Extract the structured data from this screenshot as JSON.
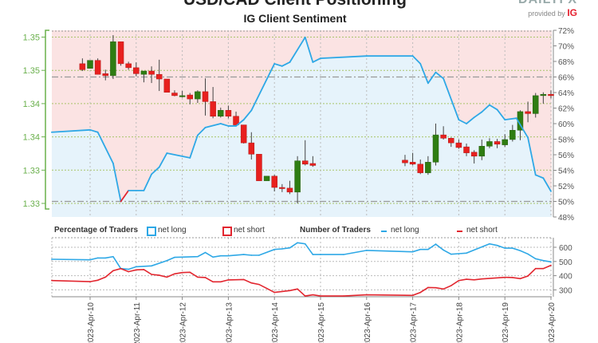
{
  "header": {
    "title": "USD/CAD Client Positioning",
    "subtitle": "IG Client Sentiment",
    "logo_text": "DAILYFX",
    "provided_by": "provided by",
    "provider": "IG"
  },
  "legend": {
    "percentage_title": "Percentage of Traders",
    "pct_long": "net long",
    "pct_short": "net short",
    "number_title": "Number of Traders",
    "num_long": "net long",
    "num_short": "net short"
  },
  "colors": {
    "net_long": "#2ea8e6",
    "net_short": "#e2262f",
    "long_fill": "#e6f3fb",
    "short_fill": "#fbe3e3",
    "candle_up": "#2e7d12",
    "candle_down": "#e8201e",
    "price_axis": "#6ab04c"
  },
  "chart_data": [
    {
      "type": "candlestick+area",
      "title": "IG Client Sentiment",
      "price_axis": {
        "side": "left",
        "ticks": [
          1.35,
          1.345,
          1.34,
          1.335,
          1.33,
          1.325
        ],
        "tick_labels": [
          "1.35",
          "1.35",
          "1.34",
          "1.34",
          "1.33",
          "1.33"
        ]
      },
      "pct_axis": {
        "side": "right",
        "ylim": [
          48,
          72
        ],
        "ticks": [
          72,
          70,
          68,
          66,
          64,
          62,
          60,
          58,
          56,
          54,
          52,
          50,
          48
        ],
        "tick_labels": [
          "72%",
          "70%",
          "68%",
          "66%",
          "64%",
          "62%",
          "60%",
          "58%",
          "56%",
          "54%",
          "52%",
          "50%",
          "48%"
        ]
      },
      "reference_lines_pct": [
        66,
        50
      ],
      "x_range": [
        "2023-04-09T04:00",
        "2023-04-20T00:00"
      ],
      "grid": true,
      "candles_ohlc": [
        [
          "2023-04-09T20:00",
          1.346,
          1.3468,
          1.3449,
          1.3451
        ],
        [
          "2023-04-10T00:00",
          1.3453,
          1.3465,
          1.3453,
          1.3465
        ],
        [
          "2023-04-10T04:00",
          1.3465,
          1.3468,
          1.3444,
          1.3444
        ],
        [
          "2023-04-10T08:00",
          1.3445,
          1.3451,
          1.3435,
          1.3442
        ],
        [
          "2023-04-10T12:00",
          1.3442,
          1.3503,
          1.3437,
          1.3493
        ],
        [
          "2023-04-10T16:00",
          1.3493,
          1.3493,
          1.3457,
          1.346
        ],
        [
          "2023-04-10T20:00",
          1.346,
          1.3463,
          1.3451,
          1.3454
        ],
        [
          "2023-04-11T00:00",
          1.3454,
          1.3462,
          1.3441,
          1.3445
        ],
        [
          "2023-04-11T04:00",
          1.3444,
          1.3449,
          1.3432,
          1.3449
        ],
        [
          "2023-04-11T08:00",
          1.3449,
          1.3456,
          1.3431,
          1.3444
        ],
        [
          "2023-04-11T12:00",
          1.3444,
          1.3466,
          1.3419,
          1.3437
        ],
        [
          "2023-04-11T16:00",
          1.3437,
          1.3437,
          1.3417,
          1.3417
        ],
        [
          "2023-04-11T20:00",
          1.3416,
          1.342,
          1.3411,
          1.3412
        ],
        [
          "2023-04-12T00:00",
          1.3412,
          1.3419,
          1.3409,
          1.3412
        ],
        [
          "2023-04-12T04:00",
          1.3413,
          1.3416,
          1.3399,
          1.3407
        ],
        [
          "2023-04-12T08:00",
          1.3407,
          1.342,
          1.3401,
          1.3418
        ],
        [
          "2023-04-12T12:00",
          1.3418,
          1.3438,
          1.3382,
          1.3403
        ],
        [
          "2023-04-12T16:00",
          1.3403,
          1.3425,
          1.3378,
          1.3381
        ],
        [
          "2023-04-12T20:00",
          1.3381,
          1.3394,
          1.3379,
          1.339
        ],
        [
          "2023-04-13T00:00",
          1.339,
          1.3397,
          1.3378,
          1.3381
        ],
        [
          "2023-04-13T04:00",
          1.3381,
          1.3388,
          1.3368,
          1.3368
        ],
        [
          "2023-04-13T08:00",
          1.3368,
          1.3368,
          1.334,
          1.3341
        ],
        [
          "2023-04-13T12:00",
          1.3341,
          1.3357,
          1.3316,
          1.3324
        ],
        [
          "2023-04-13T16:00",
          1.3324,
          1.3324,
          1.3284,
          1.3284
        ],
        [
          "2023-04-13T20:00",
          1.3284,
          1.3291,
          1.3284,
          1.3291
        ],
        [
          "2023-04-14T00:00",
          1.3291,
          1.3293,
          1.3268,
          1.3274
        ],
        [
          "2023-04-14T04:00",
          1.3274,
          1.3279,
          1.3267,
          1.3273
        ],
        [
          "2023-04-14T08:00",
          1.3273,
          1.3284,
          1.3264,
          1.3267
        ],
        [
          "2023-04-14T12:00",
          1.3267,
          1.3321,
          1.325,
          1.3314
        ],
        [
          "2023-04-14T16:00",
          1.3314,
          1.3345,
          1.3307,
          1.3309
        ],
        [
          "2023-04-14T20:00",
          1.331,
          1.3321,
          1.3305,
          1.3307
        ],
        [
          "2023-04-16T20:00",
          1.3315,
          1.3323,
          1.3306,
          1.3311
        ],
        [
          "2023-04-17T00:00",
          1.3312,
          1.3326,
          1.3307,
          1.3309
        ],
        [
          "2023-04-17T04:00",
          1.3309,
          1.3316,
          1.3294,
          1.3296
        ],
        [
          "2023-04-17T08:00",
          1.3296,
          1.3321,
          1.3293,
          1.3312
        ],
        [
          "2023-04-17T12:00",
          1.3312,
          1.337,
          1.3307,
          1.3353
        ],
        [
          "2023-04-17T16:00",
          1.3353,
          1.3366,
          1.3346,
          1.3348
        ],
        [
          "2023-04-17T20:00",
          1.3348,
          1.3349,
          1.3335,
          1.3341
        ],
        [
          "2023-04-18T00:00",
          1.3341,
          1.3346,
          1.3332,
          1.3334
        ],
        [
          "2023-04-18T04:00",
          1.3335,
          1.334,
          1.3321,
          1.3326
        ],
        [
          "2023-04-18T08:00",
          1.3327,
          1.333,
          1.331,
          1.3321
        ],
        [
          "2023-04-18T12:00",
          1.3321,
          1.3346,
          1.3315,
          1.3336
        ],
        [
          "2023-04-18T16:00",
          1.3336,
          1.3348,
          1.3333,
          1.3343
        ],
        [
          "2023-04-18T20:00",
          1.3343,
          1.3347,
          1.3333,
          1.3339
        ],
        [
          "2023-04-19T00:00",
          1.3338,
          1.3354,
          1.3335,
          1.3346
        ],
        [
          "2023-04-19T04:00",
          1.3346,
          1.3368,
          1.3343,
          1.336
        ],
        [
          "2023-04-19T08:00",
          1.336,
          1.339,
          1.3345,
          1.3388
        ],
        [
          "2023-04-19T12:00",
          1.3388,
          1.3403,
          1.3372,
          1.3385
        ],
        [
          "2023-04-19T16:00",
          1.3385,
          1.3416,
          1.3379,
          1.3412
        ],
        [
          "2023-04-19T20:00",
          1.3412,
          1.3417,
          1.34,
          1.3414
        ],
        [
          "2023-04-20T00:00",
          1.3414,
          1.342,
          1.3408,
          1.3412
        ]
      ],
      "net_long_pct": [
        [
          "2023-04-09T04:00",
          58.9
        ],
        [
          "2023-04-10T00:00",
          59.2
        ],
        [
          "2023-04-10T04:00",
          58.9
        ],
        [
          "2023-04-10T12:00",
          54.9
        ],
        [
          "2023-04-10T16:00",
          50.0
        ],
        [
          "2023-04-10T20:00",
          51.4
        ],
        [
          "2023-04-11T04:00",
          51.4
        ],
        [
          "2023-04-11T08:00",
          53.5
        ],
        [
          "2023-04-11T12:00",
          54.4
        ],
        [
          "2023-04-11T16:00",
          56.2
        ],
        [
          "2023-04-12T04:00",
          55.6
        ],
        [
          "2023-04-12T08:00",
          58.5
        ],
        [
          "2023-04-12T12:00",
          59.5
        ],
        [
          "2023-04-12T20:00",
          60.0
        ],
        [
          "2023-04-13T00:00",
          59.7
        ],
        [
          "2023-04-13T04:00",
          59.7
        ],
        [
          "2023-04-13T08:00",
          60.5
        ],
        [
          "2023-04-13T12:00",
          61.7
        ],
        [
          "2023-04-14T00:00",
          67.7
        ],
        [
          "2023-04-14T04:00",
          67.4
        ],
        [
          "2023-04-14T08:00",
          67.9
        ],
        [
          "2023-04-14T16:00",
          71.1
        ],
        [
          "2023-04-14T20:00",
          67.9
        ],
        [
          "2023-04-15T00:00",
          68.4
        ],
        [
          "2023-04-16T00:00",
          68.7
        ],
        [
          "2023-04-17T00:00",
          68.7
        ],
        [
          "2023-04-17T04:00",
          67.7
        ],
        [
          "2023-04-17T08:00",
          65.2
        ],
        [
          "2023-04-17T12:00",
          66.6
        ],
        [
          "2023-04-17T16:00",
          65.8
        ],
        [
          "2023-04-18T00:00",
          60.5
        ],
        [
          "2023-04-18T04:00",
          60.0
        ],
        [
          "2023-04-18T08:00",
          60.8
        ],
        [
          "2023-04-18T12:00",
          61.5
        ],
        [
          "2023-04-18T16:00",
          62.4
        ],
        [
          "2023-04-18T20:00",
          61.8
        ],
        [
          "2023-04-19T00:00",
          60.5
        ],
        [
          "2023-04-19T06:00",
          60.7
        ],
        [
          "2023-04-19T12:00",
          58.2
        ],
        [
          "2023-04-19T16:00",
          53.4
        ],
        [
          "2023-04-19T20:00",
          53.0
        ],
        [
          "2023-04-20T00:00",
          51.3
        ]
      ]
    },
    {
      "type": "line",
      "title": "Number of Traders",
      "y_axis": {
        "side": "right",
        "ticks": [
          600,
          500,
          400,
          300
        ],
        "tick_labels": [
          "600",
          "500",
          "400",
          "300"
        ],
        "ylim": [
          250,
          650
        ]
      },
      "x_ticks": [
        "2023-04-10",
        "2023-04-11",
        "2023-04-12",
        "2023-04-13",
        "2023-04-14",
        "2023-04-15",
        "2023-04-16",
        "2023-04-17",
        "2023-04-18",
        "2023-04-19",
        "2023-04-20"
      ],
      "x_tick_labels": [
        "2023-Apr-10",
        "2023-Apr-11",
        "2023-Apr-12",
        "2023-Apr-13",
        "2023-Apr-14",
        "2023-Apr-15",
        "2023-Apr-16",
        "2023-Apr-17",
        "2023-Apr-18",
        "2023-Apr-19",
        "2023-Apr-20"
      ],
      "grid": true,
      "series": [
        {
          "name": "net long",
          "color": "#2ea8e6",
          "points": [
            [
              "2023-04-09T04:00",
              516
            ],
            [
              "2023-04-10T00:00",
              512
            ],
            [
              "2023-04-10T04:00",
              525
            ],
            [
              "2023-04-10T08:00",
              525
            ],
            [
              "2023-04-10T12:00",
              534
            ],
            [
              "2023-04-10T16:00",
              450
            ],
            [
              "2023-04-10T20:00",
              445
            ],
            [
              "2023-04-11T00:00",
              463
            ],
            [
              "2023-04-11T08:00",
              469
            ],
            [
              "2023-04-11T16:00",
              506
            ],
            [
              "2023-04-11T20:00",
              529
            ],
            [
              "2023-04-12T00:00",
              531
            ],
            [
              "2023-04-12T08:00",
              534
            ],
            [
              "2023-04-12T12:00",
              563
            ],
            [
              "2023-04-12T16:00",
              531
            ],
            [
              "2023-04-12T20:00",
              540
            ],
            [
              "2023-04-13T00:00",
              540
            ],
            [
              "2023-04-13T08:00",
              549
            ],
            [
              "2023-04-13T12:00",
              544
            ],
            [
              "2023-04-13T16:00",
              544
            ],
            [
              "2023-04-14T00:00",
              585
            ],
            [
              "2023-04-14T04:00",
              589
            ],
            [
              "2023-04-14T08:00",
              596
            ],
            [
              "2023-04-14T12:00",
              632
            ],
            [
              "2023-04-14T16:00",
              624
            ],
            [
              "2023-04-14T20:00",
              549
            ],
            [
              "2023-04-15T00:00",
              549
            ],
            [
              "2023-04-15T12:00",
              549
            ],
            [
              "2023-04-16T00:00",
              578
            ],
            [
              "2023-04-17T00:00",
              568
            ],
            [
              "2023-04-17T04:00",
              585
            ],
            [
              "2023-04-17T08:00",
              585
            ],
            [
              "2023-04-17T12:00",
              622
            ],
            [
              "2023-04-17T16:00",
              581
            ],
            [
              "2023-04-17T20:00",
              551
            ],
            [
              "2023-04-18T00:00",
              555
            ],
            [
              "2023-04-18T04:00",
              559
            ],
            [
              "2023-04-18T08:00",
              581
            ],
            [
              "2023-04-18T16:00",
              624
            ],
            [
              "2023-04-18T20:00",
              613
            ],
            [
              "2023-04-19T00:00",
              594
            ],
            [
              "2023-04-19T04:00",
              594
            ],
            [
              "2023-04-19T08:00",
              576
            ],
            [
              "2023-04-19T12:00",
              553
            ],
            [
              "2023-04-19T16:00",
              519
            ],
            [
              "2023-04-19T20:00",
              506
            ],
            [
              "2023-04-20T00:00",
              497
            ]
          ]
        },
        {
          "name": "net short",
          "color": "#e2262f",
          "points": [
            [
              "2023-04-09T04:00",
              366
            ],
            [
              "2023-04-10T00:00",
              358
            ],
            [
              "2023-04-10T04:00",
              368
            ],
            [
              "2023-04-10T08:00",
              390
            ],
            [
              "2023-04-10T12:00",
              435
            ],
            [
              "2023-04-10T16:00",
              450
            ],
            [
              "2023-04-10T20:00",
              428
            ],
            [
              "2023-04-11T00:00",
              441
            ],
            [
              "2023-04-11T04:00",
              443
            ],
            [
              "2023-04-11T08:00",
              409
            ],
            [
              "2023-04-11T12:00",
              403
            ],
            [
              "2023-04-11T16:00",
              390
            ],
            [
              "2023-04-11T20:00",
              413
            ],
            [
              "2023-04-12T00:00",
              422
            ],
            [
              "2023-04-12T04:00",
              424
            ],
            [
              "2023-04-12T08:00",
              390
            ],
            [
              "2023-04-12T12:00",
              387
            ],
            [
              "2023-04-12T16:00",
              357
            ],
            [
              "2023-04-12T20:00",
              357
            ],
            [
              "2023-04-13T00:00",
              370
            ],
            [
              "2023-04-13T08:00",
              373
            ],
            [
              "2023-04-13T12:00",
              349
            ],
            [
              "2023-04-13T16:00",
              338
            ],
            [
              "2023-04-13T20:00",
              310
            ],
            [
              "2023-04-14T00:00",
              282
            ],
            [
              "2023-04-14T04:00",
              289
            ],
            [
              "2023-04-14T08:00",
              295
            ],
            [
              "2023-04-14T12:00",
              306
            ],
            [
              "2023-04-14T16:00",
              257
            ],
            [
              "2023-04-14T20:00",
              265
            ],
            [
              "2023-04-15T00:00",
              257
            ],
            [
              "2023-04-15T12:00",
              257
            ],
            [
              "2023-04-16T00:00",
              265
            ],
            [
              "2023-04-17T00:00",
              261
            ],
            [
              "2023-04-17T04:00",
              282
            ],
            [
              "2023-04-17T08:00",
              317
            ],
            [
              "2023-04-17T12:00",
              315
            ],
            [
              "2023-04-17T16:00",
              306
            ],
            [
              "2023-04-17T20:00",
              330
            ],
            [
              "2023-04-18T00:00",
              366
            ],
            [
              "2023-04-18T04:00",
              375
            ],
            [
              "2023-04-18T08:00",
              371
            ],
            [
              "2023-04-18T12:00",
              377
            ],
            [
              "2023-04-19T00:00",
              388
            ],
            [
              "2023-04-19T04:00",
              387
            ],
            [
              "2023-04-19T08:00",
              379
            ],
            [
              "2023-04-19T12:00",
              398
            ],
            [
              "2023-04-19T16:00",
              450
            ],
            [
              "2023-04-19T20:00",
              450
            ],
            [
              "2023-04-20T00:00",
              473
            ]
          ]
        }
      ]
    }
  ]
}
